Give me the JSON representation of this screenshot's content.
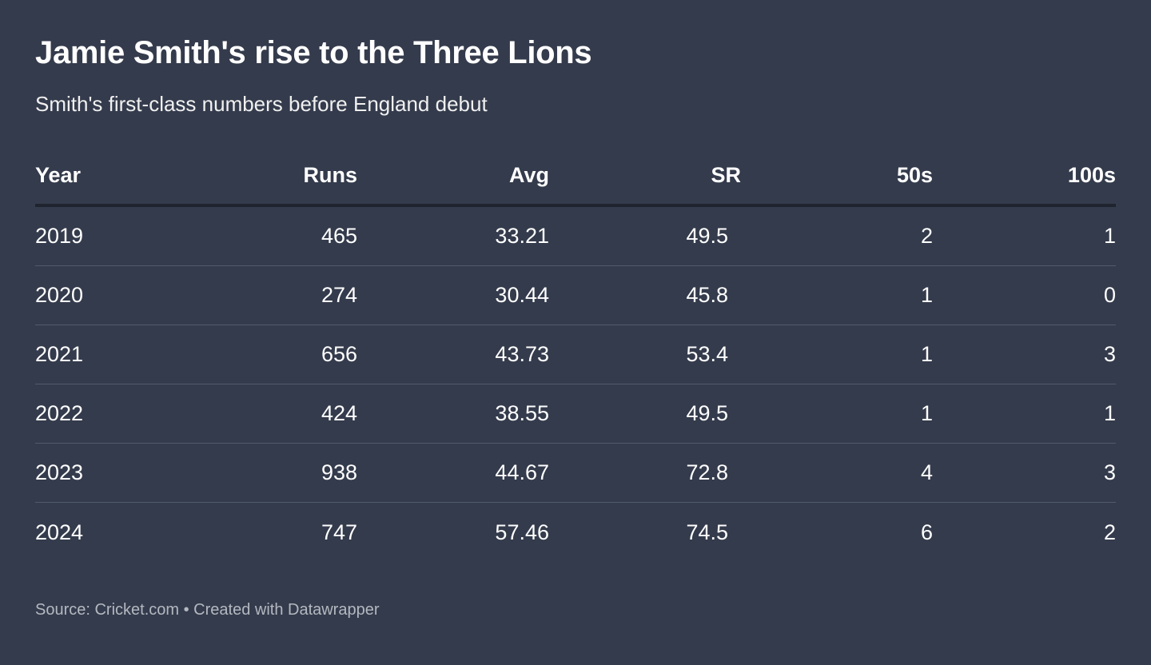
{
  "header": {
    "title": "Jamie Smith's rise to the Three Lions",
    "subtitle": "Smith's first-class numbers before England debut"
  },
  "table": {
    "columns": [
      "Year",
      "Runs",
      "Avg",
      "SR",
      "50s",
      "100s"
    ],
    "rows": [
      [
        2019,
        465,
        33.21,
        49.5,
        2,
        1
      ],
      [
        2020,
        274,
        30.44,
        45.8,
        1,
        0
      ],
      [
        2021,
        656,
        43.73,
        53.4,
        1,
        3
      ],
      [
        2022,
        424,
        38.55,
        49.5,
        1,
        1
      ],
      [
        2023,
        938,
        44.67,
        72.8,
        4,
        3
      ],
      [
        2024,
        747,
        57.46,
        74.5,
        6,
        2
      ]
    ]
  },
  "footer": {
    "text": "Source: Cricket.com • Created with Datawrapper"
  }
}
